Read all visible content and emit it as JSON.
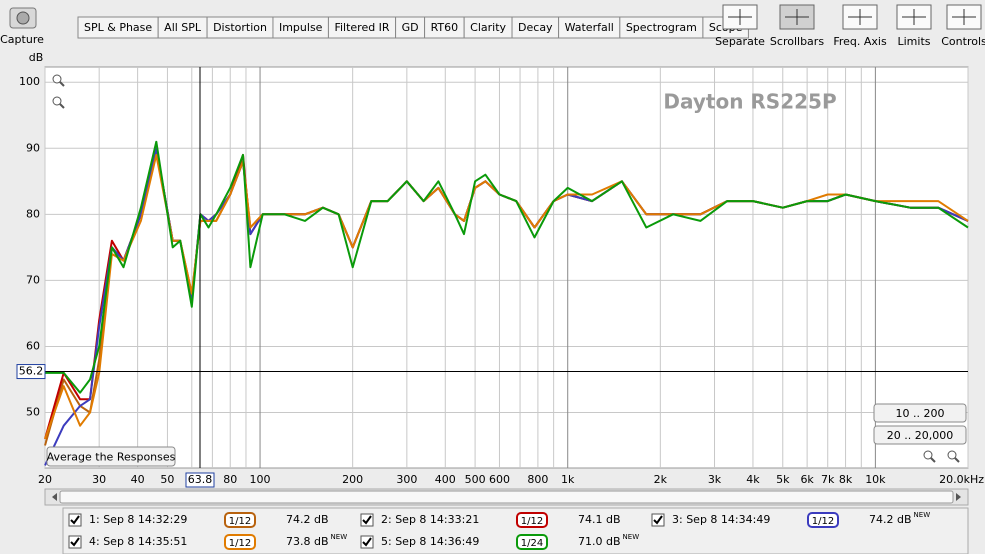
{
  "toolbar": {
    "capture": "Capture",
    "tabs": [
      "SPL & Phase",
      "All SPL",
      "Distortion",
      "Impulse",
      "Filtered IR",
      "GD",
      "RT60",
      "Clarity",
      "Decay",
      "Waterfall",
      "Spectrogram",
      "Scope"
    ],
    "selected_tab": 1,
    "view_buttons": [
      "Separate",
      "Scrollbars",
      "Freq. Axis",
      "Limits",
      "Controls"
    ]
  },
  "chart_data": {
    "type": "line",
    "title": "Dayton RS225P",
    "y_label": "dB",
    "log_x": true,
    "grid": true,
    "x": [
      20,
      23,
      26,
      28,
      30,
      33,
      36,
      41,
      46,
      52,
      55,
      60,
      64,
      68,
      72,
      80,
      88,
      93,
      102,
      120,
      140,
      160,
      180,
      200,
      230,
      260,
      300,
      340,
      380,
      430,
      460,
      500,
      540,
      600,
      680,
      780,
      900,
      1000,
      1200,
      1500,
      1800,
      2200,
      2700,
      3300,
      4000,
      5000,
      6000,
      7000,
      8000,
      10000,
      13000,
      16000,
      20000
    ],
    "xlim": [
      20,
      20000
    ],
    "xticks": [
      20,
      30,
      40,
      50,
      80,
      100,
      200,
      300,
      400,
      500,
      600,
      800,
      {
        "value": 1000,
        "label": "1k"
      },
      {
        "value": 2000,
        "label": "2k"
      },
      {
        "value": 3000,
        "label": "3k"
      },
      {
        "value": 4000,
        "label": "4k"
      },
      {
        "value": 5000,
        "label": "5k"
      },
      {
        "value": 6000,
        "label": "6k"
      },
      {
        "value": 7000,
        "label": "7k"
      },
      {
        "value": 8000,
        "label": "8k"
      },
      {
        "value": 10000,
        "label": "10k"
      },
      {
        "value": 20000,
        "label": "20.0kHz"
      }
    ],
    "xminor": [
      60,
      70,
      90,
      700,
      900,
      9000
    ],
    "ylim": [
      41.6,
      102.3
    ],
    "yticks": [
      50,
      60,
      70,
      80,
      90,
      100
    ],
    "cursor": {
      "x": 63.8,
      "y": 56.2
    },
    "buttons": [
      "10 .. 200",
      "20 .. 20,000",
      "Average the Responses"
    ],
    "series": [
      {
        "name": "1: Sep 8 14:32:29",
        "color": "#b8620e",
        "smoothing": "1/12",
        "level": "74.2 dB",
        "checked": true,
        "values": [
          45,
          55,
          51,
          50,
          58,
          75,
          73,
          80,
          90,
          76,
          76,
          68,
          79,
          79,
          79,
          83,
          88,
          78,
          80,
          80,
          80,
          81,
          80,
          75,
          82,
          82,
          85,
          82,
          84,
          80,
          79,
          84,
          85,
          83,
          82,
          78,
          82,
          83,
          82,
          85,
          80,
          80,
          80,
          82,
          82,
          81,
          82,
          82,
          83,
          82,
          81,
          81,
          79
        ]
      },
      {
        "name": "2: Sep 8 14:33:21",
        "color": "#c00000",
        "smoothing": "1/12",
        "level": "74.1 dB",
        "checked": true,
        "values": [
          46,
          56,
          52,
          52,
          64,
          76,
          73,
          80,
          90,
          76,
          76,
          67,
          80,
          79,
          80,
          83,
          89,
          77,
          80,
          80,
          80,
          81,
          80,
          75,
          82,
          82,
          85,
          82,
          84,
          80,
          79,
          84,
          85,
          83,
          82,
          78,
          82,
          83,
          82,
          85,
          80,
          80,
          80,
          82,
          82,
          81,
          82,
          82,
          83,
          82,
          81,
          81,
          79
        ]
      },
      {
        "name": "3: Sep 8 14:34:49",
        "color": "#3c3cbe",
        "smoothing": "1/12",
        "level": "74.2 dB",
        "badge": "NEW",
        "checked": true,
        "values": [
          42,
          48,
          51,
          52,
          63,
          75,
          73,
          80,
          90,
          76,
          76,
          67,
          80,
          79,
          80,
          83,
          88,
          77,
          80,
          80,
          80,
          81,
          80,
          75,
          82,
          82,
          85,
          82,
          84,
          80,
          79,
          84,
          85,
          83,
          82,
          78,
          82,
          83,
          82,
          85,
          80,
          80,
          80,
          82,
          82,
          81,
          82,
          82,
          83,
          82,
          81,
          81,
          79
        ]
      },
      {
        "name": "4: Sep 8 14:35:51",
        "color": "#e07b00",
        "smoothing": "1/12",
        "level": "73.8 dB",
        "badge": "NEW",
        "checked": true,
        "values": [
          46,
          54,
          48,
          50,
          56,
          74,
          73,
          79,
          89,
          76,
          76,
          68,
          79,
          79,
          79,
          83,
          88,
          78,
          80,
          80,
          80,
          81,
          80,
          75,
          82,
          82,
          85,
          82,
          84,
          80,
          79,
          84,
          85,
          83,
          82,
          78,
          82,
          83,
          83,
          85,
          80,
          80,
          80,
          82,
          82,
          81,
          82,
          83,
          83,
          82,
          82,
          82,
          79
        ]
      },
      {
        "name": "5: Sep 8 14:36:49",
        "color": "#0a9a0a",
        "smoothing": "1/24",
        "level": "71.0 dB",
        "badge": "NEW",
        "checked": true,
        "values": [
          56,
          56,
          53,
          55,
          60,
          75,
          72,
          81,
          91,
          75,
          76,
          66,
          80,
          78,
          80,
          84,
          89,
          72,
          80,
          80,
          79,
          81,
          80,
          72,
          82,
          82,
          85,
          82,
          85,
          80,
          77,
          85,
          86,
          83,
          82,
          76.5,
          82,
          84,
          82,
          85,
          78,
          80,
          79,
          82,
          82,
          81,
          82,
          82,
          83,
          82,
          81,
          81,
          78
        ]
      }
    ]
  }
}
